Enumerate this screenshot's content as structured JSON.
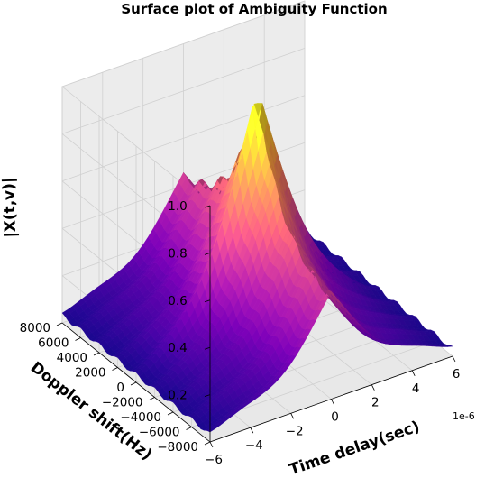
{
  "chart_data": {
    "type": "surface",
    "title": "Surface plot of Ambiguity Function",
    "xlabel": "Time delay(sec)",
    "ylabel": "Doppler shift(Hz)",
    "zlabel": "|X(t,v)|",
    "x_offset_text": "1e-6",
    "x_scale": 1e-06,
    "xlim": [
      -6,
      6
    ],
    "ylim": [
      -8000,
      8000
    ],
    "zlim": [
      0,
      1.0
    ],
    "x_ticks": [
      "−6",
      "−4",
      "−2",
      "0",
      "2",
      "4",
      "6"
    ],
    "x_tick_values": [
      -6,
      -4,
      -2,
      0,
      2,
      4,
      6
    ],
    "y_ticks": [
      "−8000",
      "−6000",
      "−4000",
      "−2000",
      "0",
      "2000",
      "4000",
      "6000",
      "8000"
    ],
    "y_tick_values": [
      -8000,
      -6000,
      -4000,
      -2000,
      0,
      2000,
      4000,
      6000,
      8000
    ],
    "z_ticks": [
      "0.2",
      "0.4",
      "0.6",
      "0.8",
      "1.0"
    ],
    "z_tick_values": [
      0.2,
      0.4,
      0.6,
      0.8,
      1.0
    ],
    "peak": {
      "x": 0,
      "y": 0,
      "z": 1.0
    },
    "pulse_width": 6,
    "doppler_ripple_period_hz": 2000,
    "floor_level": 0.04,
    "colormap": "plasma",
    "colormap_stops": [
      "#0d0887",
      "#46039f",
      "#7201a8",
      "#9c179e",
      "#bd3786",
      "#d8576b",
      "#ed7953",
      "#fb9f3a",
      "#fdca26",
      "#f0f921"
    ],
    "grid": true,
    "pane_color": "#f2f2f2"
  }
}
